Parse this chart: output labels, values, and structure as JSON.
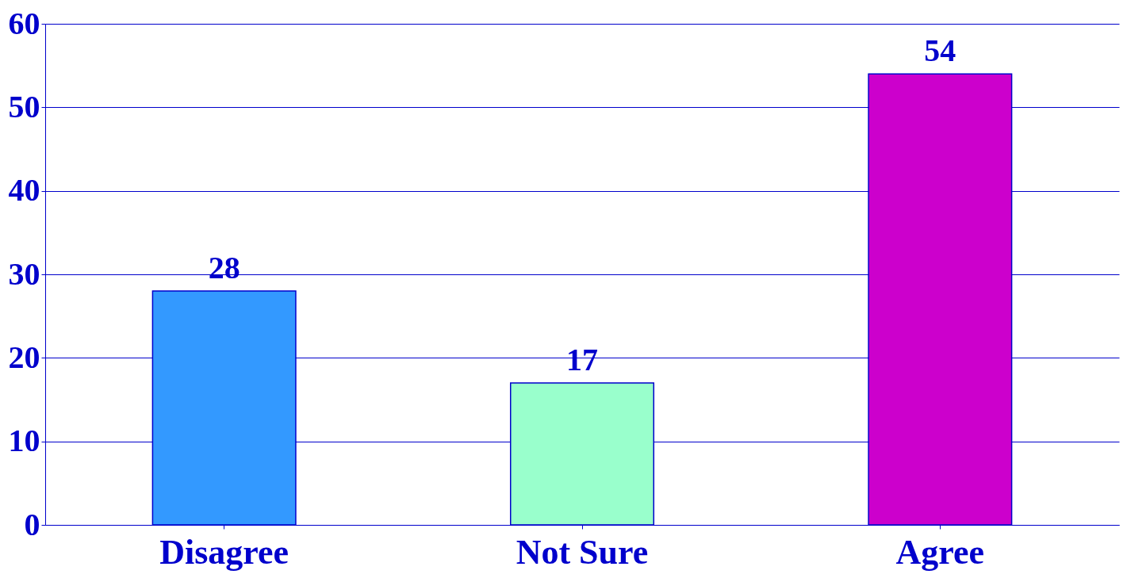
{
  "chart_data": {
    "type": "bar",
    "categories": [
      "Disagree",
      "Not Sure",
      "Agree"
    ],
    "values": [
      28,
      17,
      54
    ],
    "colors": [
      "#3399ff",
      "#99ffcc",
      "#cc00cc"
    ],
    "ylim": [
      0,
      60
    ],
    "yticks": [
      0,
      10,
      20,
      30,
      40,
      50,
      60
    ],
    "grid": "y",
    "data_labels": true
  }
}
